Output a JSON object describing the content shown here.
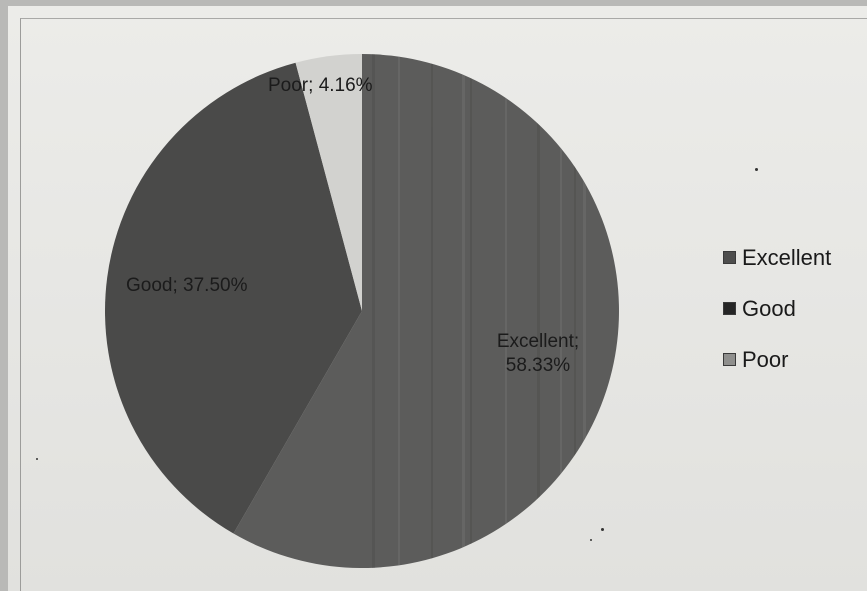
{
  "chart_data": {
    "type": "pie",
    "slices": [
      {
        "category": "Excellent",
        "value": 58.33,
        "label": "Excellent;",
        "label_value": "58.33%",
        "color": "#5c5c5b"
      },
      {
        "category": "Good",
        "value": 37.5,
        "label": "Good;",
        "label_value": "37.50%",
        "color": "#4a4a49"
      },
      {
        "category": "Poor",
        "value": 4.16,
        "label": "Poor;",
        "label_value": "4.16%",
        "color": "#d2d2cf"
      }
    ],
    "legend": {
      "placement": "right",
      "entries": [
        "Excellent",
        "Good",
        "Poor"
      ]
    }
  }
}
